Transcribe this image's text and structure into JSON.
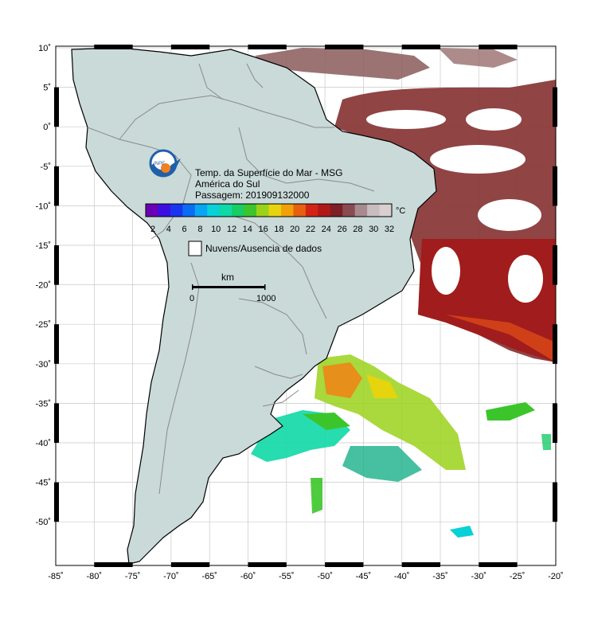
{
  "map": {
    "title": "Temp. da Superfície do Mar - MSG",
    "region": "América do Sul",
    "pass_label": "Passagem: 201909132000",
    "legend_unit": "°C",
    "legend_ticks": [
      "2",
      "4",
      "6",
      "8",
      "10",
      "12",
      "14",
      "16",
      "18",
      "20",
      "22",
      "24",
      "26",
      "28",
      "30",
      "32"
    ],
    "legend_colors": [
      "#6a00b5",
      "#3a10e0",
      "#1836f0",
      "#0a6cf5",
      "#08a6f2",
      "#0ad0d8",
      "#10d8a6",
      "#18cc66",
      "#3cc52a",
      "#9ad21a",
      "#e6d40e",
      "#f2a00a",
      "#e66010",
      "#d22414",
      "#b01818",
      "#7e1e26",
      "#8a4a52",
      "#a68a8e",
      "#c8bcbe",
      "#d8d0d0"
    ],
    "nuvens_label": "Nuvens/Ausencia de dados",
    "scale_title": "km",
    "scale_min": "0",
    "scale_max": "1000",
    "lon_labels": [
      "-85˚",
      "-80˚",
      "-75˚",
      "-70˚",
      "-65˚",
      "-60˚",
      "-55˚",
      "-50˚",
      "-45˚",
      "-40˚",
      "-35˚",
      "-30˚",
      "-25˚",
      "-20˚"
    ],
    "lat_labels": [
      "10˚",
      "5˚",
      "0˚",
      "-5˚",
      "-10˚",
      "-15˚",
      "-20˚",
      "-25˚",
      "-30˚",
      "-35˚",
      "-40˚",
      "-45˚",
      "-50˚"
    ],
    "colors": {
      "land": "#c9dad9",
      "ocean": "#ffffff",
      "border": "#8a8a8a",
      "grid": "#c8c8c8",
      "coast": "#000000"
    }
  }
}
